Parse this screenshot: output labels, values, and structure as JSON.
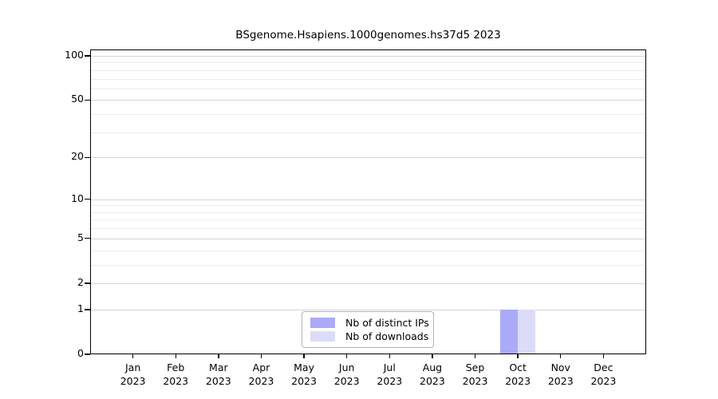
{
  "figure": {
    "background": "#ffffff"
  },
  "chart_data": {
    "type": "bar",
    "title": "BSgenome.Hsapiens.1000genomes.hs37d5 2023",
    "categories": [
      "Jan",
      "Feb",
      "Mar",
      "Apr",
      "May",
      "Jun",
      "Jul",
      "Aug",
      "Sep",
      "Oct",
      "Nov",
      "Dec"
    ],
    "x_tick_year": "2023",
    "series": [
      {
        "name": "Nb of distinct IPs",
        "color": "#aaaaf8",
        "values": [
          0,
          0,
          0,
          0,
          0,
          0,
          0,
          0,
          0,
          1,
          0,
          0
        ]
      },
      {
        "name": "Nb of downloads",
        "color": "#dcdcf8",
        "values": [
          0,
          0,
          0,
          0,
          0,
          0,
          0,
          0,
          0,
          1,
          0,
          0
        ]
      }
    ],
    "y_axis": {
      "scale": "log1p",
      "ticks": [
        0,
        1,
        2,
        5,
        10,
        20,
        50,
        100
      ],
      "gridlines": [
        1,
        2,
        3,
        4,
        5,
        6,
        7,
        8,
        9,
        10,
        20,
        30,
        40,
        50,
        60,
        70,
        80,
        90,
        100
      ],
      "range": [
        0,
        100
      ]
    },
    "grid": "horizontal-only",
    "legend_position": "bottom-center",
    "colors": {
      "axis": "#000000",
      "gridline_major": "#d4d4d4",
      "gridline_minor": "#ececec",
      "legend_border": "#b4b4b4"
    }
  }
}
